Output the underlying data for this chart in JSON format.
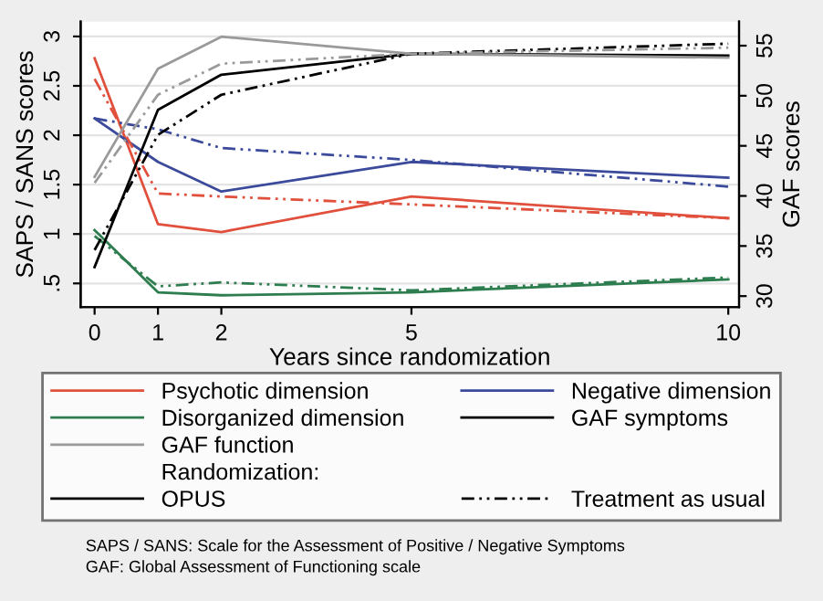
{
  "chart_data": {
    "type": "line",
    "xlabel": "Years since randomization",
    "ylabel": "SAPS / SANS scores",
    "y2label": "GAF scores",
    "x": [
      0,
      1,
      2,
      5,
      10
    ],
    "xlim": [
      -0.22,
      10.17
    ],
    "xticks": [
      0,
      1,
      2,
      5,
      10
    ],
    "ylim": [
      0.26,
      3.15
    ],
    "yticks": [
      {
        "value": 0.5,
        "label": ".5"
      },
      1,
      1.5,
      2,
      2.5,
      3
    ],
    "y2lim": [
      28.9,
      57.4
    ],
    "y2ticks": [
      30,
      35,
      40,
      45,
      50,
      55
    ],
    "grid": "y",
    "legend": "bottom",
    "legend_title": "Randomization:",
    "series": [
      {
        "name": "Psychotic dimension",
        "color": "#e0503c",
        "line_style": "solid",
        "values": [
          2.78,
          1.1,
          1.02,
          1.38,
          1.16
        ]
      },
      {
        "name": "Negative dimension",
        "color": "#3b4a9a",
        "line_style": "solid",
        "values": [
          2.17,
          1.73,
          1.43,
          1.73,
          1.57
        ]
      },
      {
        "name": "Disorganized dimension",
        "color": "#2e7d4f",
        "line_style": "solid",
        "values": [
          1.04,
          0.41,
          0.38,
          0.41,
          0.54
        ]
      },
      {
        "name": "GAF symptoms",
        "color": "#000000",
        "line_style": "solid",
        "axis": "y2",
        "values": [
          32.9,
          48.6,
          52.1,
          54.2,
          54.0
        ]
      },
      {
        "name": "GAF function",
        "color": "#9a9a9a",
        "line_style": "solid",
        "axis": "y2",
        "values": [
          41.9,
          52.7,
          55.9,
          54.2,
          53.8
        ]
      },
      {
        "color": "#e0503c",
        "line_style": "dashed",
        "values": [
          2.57,
          1.41,
          1.38,
          1.3,
          1.16
        ]
      },
      {
        "color": "#3b4a9a",
        "line_style": "dashed",
        "values": [
          2.17,
          2.06,
          1.87,
          1.75,
          1.48
        ]
      },
      {
        "color": "#2e7d4f",
        "line_style": "dashed",
        "values": [
          0.98,
          0.47,
          0.51,
          0.43,
          0.56
        ]
      },
      {
        "color": "#000000",
        "line_style": "dashed",
        "axis": "y2",
        "values": [
          34.6,
          46.1,
          50.1,
          54.2,
          55.2
        ]
      },
      {
        "color": "#9a9a9a",
        "line_style": "dashed",
        "axis": "y2",
        "values": [
          41.3,
          50.1,
          53.2,
          54.2,
          54.8
        ]
      }
    ],
    "annotations": [
      "OPUS",
      "Treatment as usual",
      "SAPS / SANS: Scale for the Assessment of Positive / Negative Symptoms",
      "GAF: Global Assessment of Functioning scale"
    ]
  }
}
